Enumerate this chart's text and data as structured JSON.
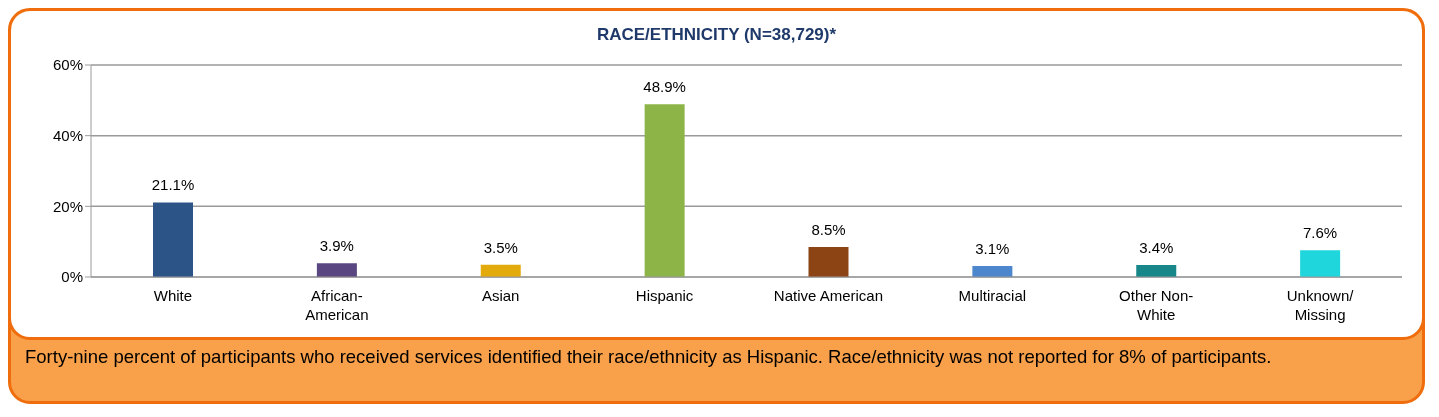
{
  "chart_data": {
    "type": "bar",
    "title": "RACE/ETHNICITY (N=38,729)*",
    "categories": [
      "White",
      "African-American",
      "Asian",
      "Hispanic",
      "Native American",
      "Multiracial",
      "Other Non-White",
      "Unknown/Missing"
    ],
    "values": [
      21.1,
      3.9,
      3.5,
      48.9,
      8.5,
      3.1,
      3.4,
      7.6
    ],
    "colors": [
      "#2d5486",
      "#5a4680",
      "#e2aa0a",
      "#8db446",
      "#8c4414",
      "#4c86cc",
      "#17878a",
      "#1fd6dc"
    ],
    "value_labels": [
      "21.1%",
      "3.9%",
      "3.5%",
      "48.9%",
      "8.5%",
      "3.1%",
      "3.4%",
      "7.6%"
    ],
    "ylim": [
      0,
      60
    ],
    "yticks": [
      {
        "value": 0,
        "label": "0%"
      },
      {
        "value": 20,
        "label": "20%"
      },
      {
        "value": 40,
        "label": "40%"
      },
      {
        "value": 60,
        "label": "60%"
      }
    ],
    "grid": "y",
    "annotations": [
      "Forty-nine percent of participants who received services identified their race/ethnicity as Hispanic. Race/ethnicity was not reported for 8% of participants."
    ]
  }
}
